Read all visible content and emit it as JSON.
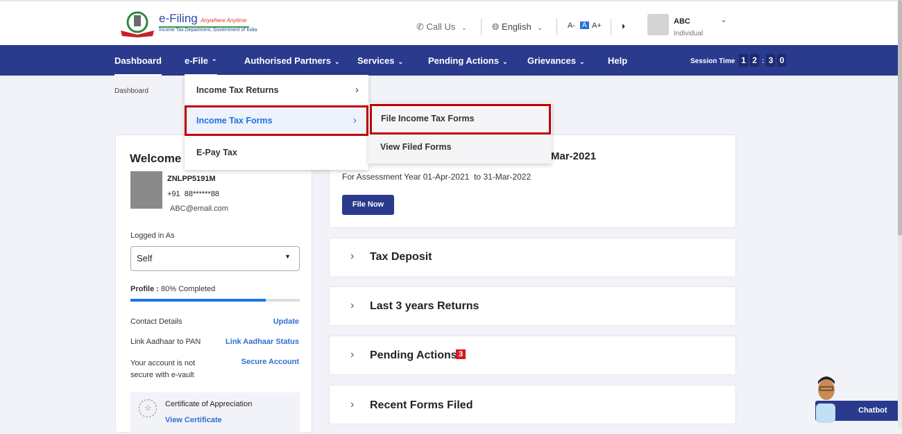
{
  "header": {
    "logo": {
      "title": "e-Filing",
      "tagline": "Anywhere Anytime",
      "subtitle": "Income Tax Department, Government of India"
    },
    "call_us": "Call Us",
    "language": "English",
    "font_small": "A-",
    "font_normal": "A",
    "font_large": "A+",
    "user_name": "ABC",
    "user_type": "Individual"
  },
  "nav": {
    "items": [
      {
        "label": "Dashboard"
      },
      {
        "label": "e-File"
      },
      {
        "label": "Authorised Partners"
      },
      {
        "label": "Services"
      },
      {
        "label": "Pending Actions"
      },
      {
        "label": "Grievances"
      },
      {
        "label": "Help"
      }
    ],
    "session_label": "Session Time",
    "session_digits": [
      "1",
      "2",
      ":",
      "3",
      "0"
    ]
  },
  "breadcrumb": "Dashboard",
  "efile_menu": {
    "items": [
      {
        "label": "Income Tax Returns"
      },
      {
        "label": "Income Tax Forms"
      },
      {
        "label": "E-Pay Tax"
      }
    ]
  },
  "forms_submenu": {
    "items": [
      {
        "label": "File Income Tax Forms"
      },
      {
        "label": "View Filed Forms"
      }
    ]
  },
  "profile": {
    "welcome": "Welcome B",
    "pan": "ZNLPP5191M",
    "phone": "+91  88******88",
    "email": "ABC@email.com",
    "logged_in_label": "Logged in As",
    "logged_in_value": "Self",
    "profile_label": "Profile :",
    "profile_status": "80% Completed",
    "profile_percent": 80,
    "contact_label": "Contact Details",
    "contact_link": "Update",
    "aadhaar_label": "Link Aadhaar to PAN",
    "aadhaar_link": "Link Aadhaar Status",
    "vault_label": "Your account is not secure with e-vault",
    "vault_link": "Secure Account",
    "cert_label": "Certificate of Appreciation",
    "cert_link": "View Certificate"
  },
  "filing_card": {
    "heading": "Mar-2021",
    "ay_text": "For Assessment Year 01-Apr-2021  to 31-Mar-2022",
    "button": "File Now"
  },
  "accordions": [
    {
      "label": "Tax Deposit"
    },
    {
      "label": "Last 3 years Returns"
    },
    {
      "label": "Pending Actions",
      "badge": "3"
    },
    {
      "label": "Recent Forms Filed"
    }
  ],
  "chatbot": "Chatbot",
  "colors": {
    "nav": "#2a3a8c",
    "highlight": "#c00000",
    "link": "#2e6fd0",
    "progress": "#1a73e8",
    "badge": "#d71920"
  }
}
